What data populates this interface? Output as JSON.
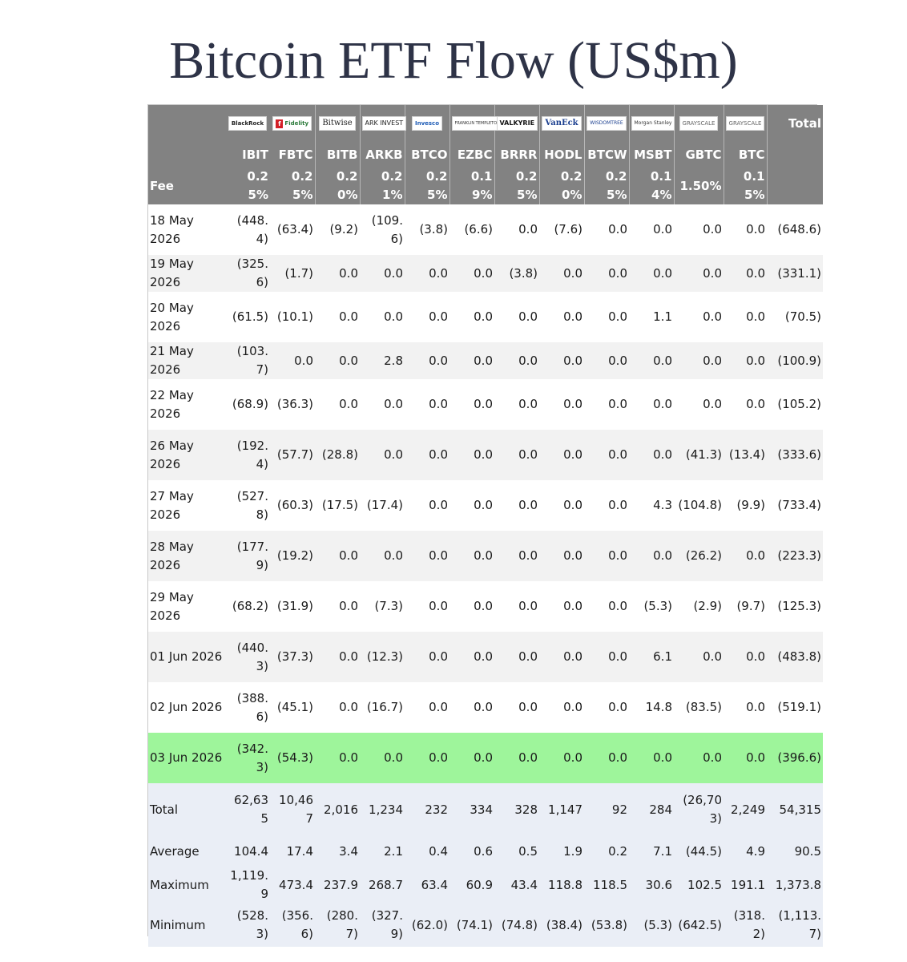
{
  "title": "Bitcoin ETF Flow (US$m)",
  "header": {
    "total_label": "Total",
    "fee_label": "Fee",
    "issuers": [
      "BlackRock",
      "Fidelity",
      "Bitwise",
      "ARK INVEST",
      "Invesco",
      "FRANKLIN TEMPLETON",
      "VALKYRIE",
      "VanEck",
      "WISDOMTREE",
      "Morgan Stanley",
      "GRAYSCALE",
      "GRAYSCALE"
    ],
    "tickers": [
      "IBIT",
      "FBTC",
      "BITB",
      "ARKB",
      "BTCO",
      "EZBC",
      "BRRR",
      "HODL",
      "BTCW",
      "MSBT",
      "GBTC",
      "BTC"
    ],
    "fees": [
      "0.25%",
      "0.25%",
      "0.20%",
      "0.21%",
      "0.25%",
      "0.19%",
      "0.25%",
      "0.20%",
      "0.25%",
      "0.14%",
      "1.50%",
      "0.15%"
    ]
  },
  "rows": [
    {
      "date": "18 May 2026",
      "values": [
        "(448.4)",
        "(63.4)",
        "(9.2)",
        "(109.6)",
        "(3.8)",
        "(6.6)",
        "0.0",
        "(7.6)",
        "0.0",
        "0.0",
        "0.0",
        "0.0"
      ],
      "total": "(648.6)"
    },
    {
      "date": "19 May 2026",
      "values": [
        "(325.6)",
        "(1.7)",
        "0.0",
        "0.0",
        "0.0",
        "0.0",
        "(3.8)",
        "0.0",
        "0.0",
        "0.0",
        "0.0",
        "0.0"
      ],
      "total": "(331.1)"
    },
    {
      "date": "20 May 2026",
      "values": [
        "(61.5)",
        "(10.1)",
        "0.0",
        "0.0",
        "0.0",
        "0.0",
        "0.0",
        "0.0",
        "0.0",
        "1.1",
        "0.0",
        "0.0"
      ],
      "total": "(70.5)"
    },
    {
      "date": "21 May 2026",
      "values": [
        "(103.7)",
        "0.0",
        "0.0",
        "2.8",
        "0.0",
        "0.0",
        "0.0",
        "0.0",
        "0.0",
        "0.0",
        "0.0",
        "0.0"
      ],
      "total": "(100.9)"
    },
    {
      "date": "22 May 2026",
      "values": [
        "(68.9)",
        "(36.3)",
        "0.0",
        "0.0",
        "0.0",
        "0.0",
        "0.0",
        "0.0",
        "0.0",
        "0.0",
        "0.0",
        "0.0"
      ],
      "total": "(105.2)"
    },
    {
      "date": "26 May 2026",
      "values": [
        "(192.4)",
        "(57.7)",
        "(28.8)",
        "0.0",
        "0.0",
        "0.0",
        "0.0",
        "0.0",
        "0.0",
        "0.0",
        "(41.3)",
        "(13.4)"
      ],
      "total": "(333.6)"
    },
    {
      "date": "27 May 2026",
      "values": [
        "(527.8)",
        "(60.3)",
        "(17.5)",
        "(17.4)",
        "0.0",
        "0.0",
        "0.0",
        "0.0",
        "0.0",
        "4.3",
        "(104.8)",
        "(9.9)"
      ],
      "total": "(733.4)"
    },
    {
      "date": "28 May 2026",
      "values": [
        "(177.9)",
        "(19.2)",
        "0.0",
        "0.0",
        "0.0",
        "0.0",
        "0.0",
        "0.0",
        "0.0",
        "0.0",
        "(26.2)",
        "0.0"
      ],
      "total": "(223.3)"
    },
    {
      "date": "29 May 2026",
      "values": [
        "(68.2)",
        "(31.9)",
        "0.0",
        "(7.3)",
        "0.0",
        "0.0",
        "0.0",
        "0.0",
        "0.0",
        "(5.3)",
        "(2.9)",
        "(9.7)"
      ],
      "total": "(125.3)"
    },
    {
      "date": "01 Jun 2026",
      "values": [
        "(440.3)",
        "(37.3)",
        "0.0",
        "(12.3)",
        "0.0",
        "0.0",
        "0.0",
        "0.0",
        "0.0",
        "6.1",
        "0.0",
        "0.0"
      ],
      "total": "(483.8)"
    },
    {
      "date": "02 Jun 2026",
      "values": [
        "(388.6)",
        "(45.1)",
        "0.0",
        "(16.7)",
        "0.0",
        "0.0",
        "0.0",
        "0.0",
        "0.0",
        "14.8",
        "(83.5)",
        "0.0"
      ],
      "total": "(519.1)"
    },
    {
      "date": "03 Jun 2026",
      "values": [
        "(342.3)",
        "(54.3)",
        "0.0",
        "0.0",
        "0.0",
        "0.0",
        "0.0",
        "0.0",
        "0.0",
        "0.0",
        "0.0",
        "0.0"
      ],
      "total": "(396.6)"
    }
  ],
  "summary": [
    {
      "label": "Total",
      "values": [
        "62,635",
        "10,467",
        "2,016",
        "1,234",
        "232",
        "334",
        "328",
        "1,147",
        "92",
        "284",
        "(26,703)",
        "2,249"
      ],
      "total": "54,315"
    },
    {
      "label": "Average",
      "values": [
        "104.4",
        "17.4",
        "3.4",
        "2.1",
        "0.4",
        "0.6",
        "0.5",
        "1.9",
        "0.2",
        "7.1",
        "(44.5)",
        "4.9"
      ],
      "total": "90.5"
    },
    {
      "label": "Maximum",
      "values": [
        "1,119.9",
        "473.4",
        "237.9",
        "268.7",
        "63.4",
        "60.9",
        "43.4",
        "118.8",
        "118.5",
        "30.6",
        "102.5",
        "191.1"
      ],
      "total": "1,373.8"
    },
    {
      "label": "Minimum",
      "values": [
        "(528.3)",
        "(356.6)",
        "(280.7)",
        "(327.9)",
        "(62.0)",
        "(74.1)",
        "(74.8)",
        "(38.4)",
        "(53.8)",
        "(5.3)",
        "(642.5)",
        "(318.2)"
      ],
      "total": "(1,113.7)"
    }
  ],
  "colors": {
    "header_bg": "#828282",
    "negative": "#d9262e",
    "zero": "#bdbdbd",
    "highlight": "#9ef59b",
    "summary_bg": "#eaeef6"
  }
}
